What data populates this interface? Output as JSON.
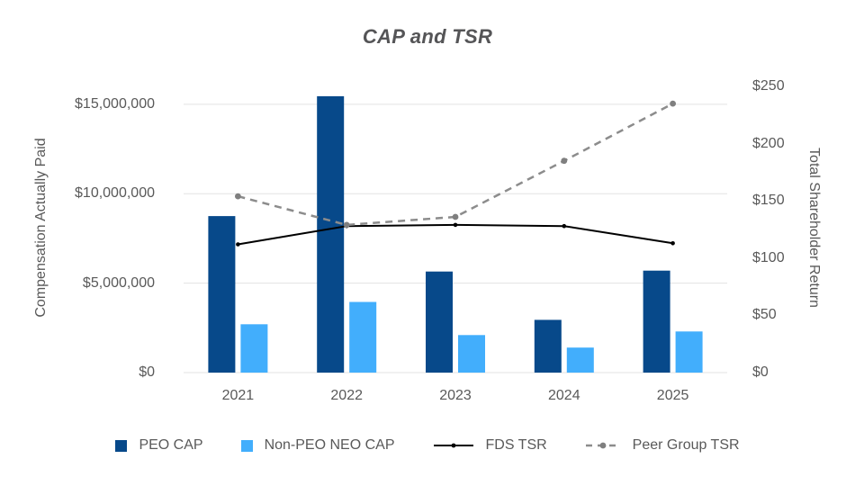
{
  "chart_data": {
    "type": "combo-bar-line",
    "title": "CAP and TSR",
    "categories": [
      "2021",
      "2022",
      "2023",
      "2024",
      "2025"
    ],
    "bar_series": [
      {
        "name": "PEO CAP",
        "axis": "left",
        "color": "#07498a",
        "values": [
          8750000,
          15450000,
          5650000,
          2950000,
          5700000
        ]
      },
      {
        "name": "Non-PEO NEO CAP",
        "axis": "left",
        "color": "#42aefc",
        "values": [
          2700000,
          3950000,
          2100000,
          1400000,
          2300000
        ]
      }
    ],
    "line_series": [
      {
        "name": "FDS TSR",
        "axis": "right",
        "color": "#000000",
        "marker_color": "#000000",
        "style": "solid",
        "values": [
          112,
          128,
          129,
          128,
          113
        ]
      },
      {
        "name": "Peer Group TSR",
        "axis": "right",
        "color": "#8c8c8c",
        "marker_color": "#7f7f7f",
        "style": "dashed",
        "values": [
          154,
          129,
          136,
          185,
          235
        ]
      }
    ],
    "left_axis": {
      "title": "Compensation Actually Paid",
      "ticks": [
        "$0",
        "$5,000,000",
        "$10,000,000",
        "$15,000,000"
      ],
      "tick_values": [
        0,
        5000000,
        10000000,
        15000000
      ],
      "max": 16000000
    },
    "right_axis": {
      "title": "Total Shareholder Return",
      "ticks": [
        "$0",
        "$50",
        "$100",
        "$150",
        "$200",
        "$250"
      ],
      "tick_values": [
        0,
        50,
        100,
        150,
        200,
        250
      ],
      "max": 250
    },
    "grid": "horizontal",
    "legend_position": "bottom",
    "colors": {
      "grid_line": "#e3e3e3",
      "axis_text": "#595959",
      "title_text": "#555557",
      "background": "#ffffff"
    }
  }
}
